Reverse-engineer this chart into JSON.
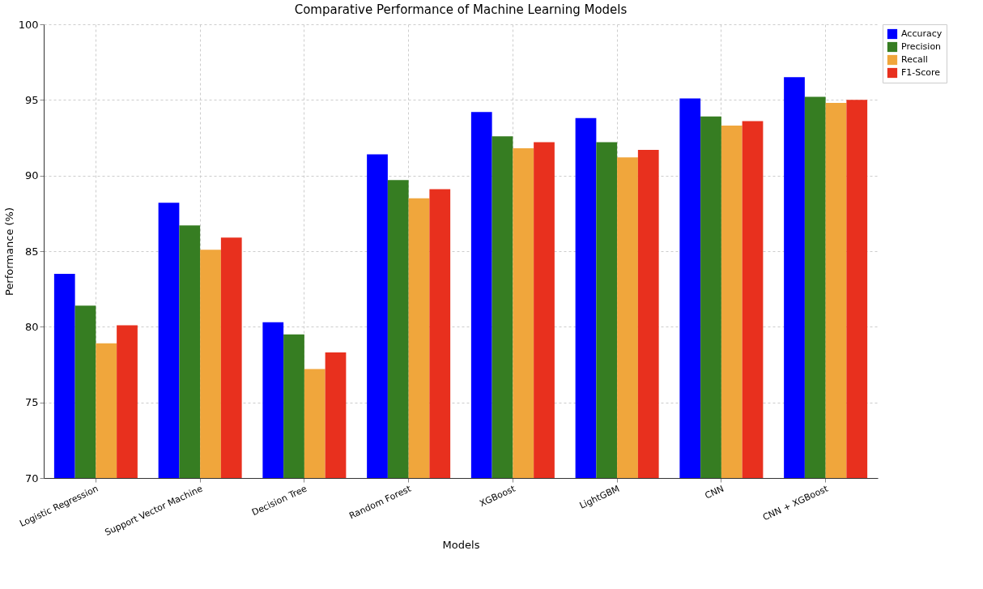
{
  "chart_data": {
    "type": "bar",
    "title": "Comparative Performance of Machine Learning Models",
    "xlabel": "Models",
    "ylabel": "Performance (%)",
    "categories": [
      "Logistic Regression",
      "Support Vector Machine",
      "Decision Tree",
      "Random Forest",
      "XGBoost",
      "LightGBM",
      "CNN",
      "CNN + XGBoost"
    ],
    "series": [
      {
        "name": "Accuracy",
        "color": "#0000ff",
        "values": [
          83.5,
          88.2,
          80.3,
          91.4,
          94.2,
          93.8,
          95.1,
          96.5
        ]
      },
      {
        "name": "Precision",
        "color": "#367d22",
        "values": [
          81.4,
          86.7,
          79.5,
          89.7,
          92.6,
          92.2,
          93.9,
          95.2
        ]
      },
      {
        "name": "Recall",
        "color": "#f0a63c",
        "values": [
          78.9,
          85.1,
          77.2,
          88.5,
          91.8,
          91.2,
          93.3,
          94.8
        ]
      },
      {
        "name": "F1-Score",
        "color": "#e8301e",
        "values": [
          80.1,
          85.9,
          78.3,
          89.1,
          92.2,
          91.7,
          93.6,
          95.0
        ]
      }
    ],
    "ylim": [
      70,
      100
    ],
    "yticks": [
      70,
      75,
      80,
      85,
      90,
      95,
      100
    ],
    "grid": true,
    "legend": "top right"
  }
}
